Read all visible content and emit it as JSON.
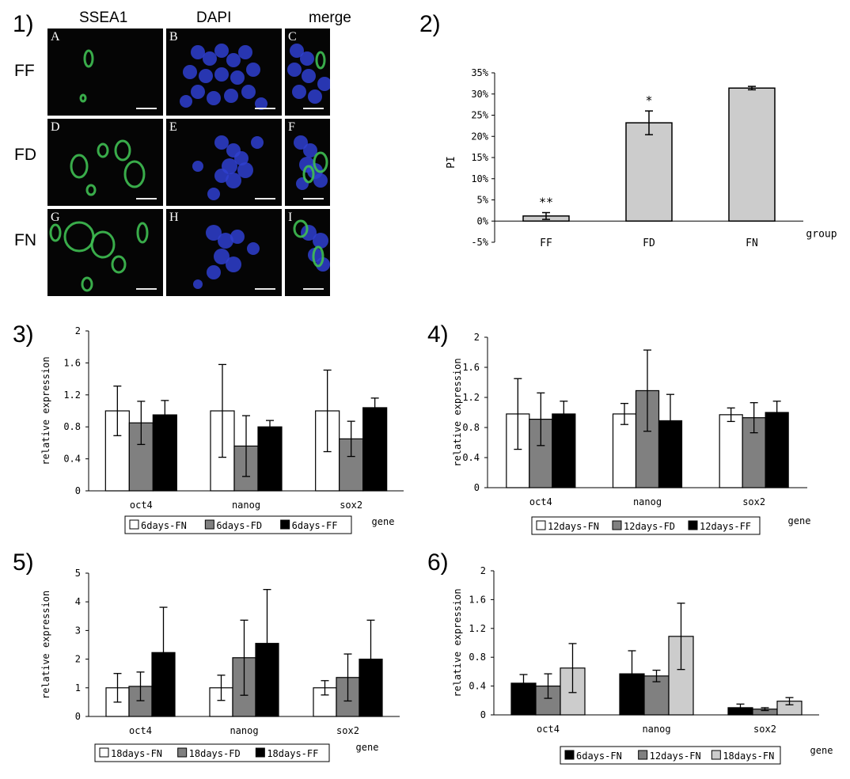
{
  "panel_labels": [
    "1)",
    "2)",
    "3)",
    "4)",
    "5)",
    "6)"
  ],
  "micrograph": {
    "columns": [
      "SSEA1",
      "DAPI",
      "merge"
    ],
    "rows": [
      "FF",
      "FD",
      "FN"
    ],
    "tiles": [
      {
        "letter": "A",
        "stain": "green"
      },
      {
        "letter": "B",
        "stain": "blue"
      },
      {
        "letter": "C",
        "stain": "merge"
      },
      {
        "letter": "D",
        "stain": "green"
      },
      {
        "letter": "E",
        "stain": "blue"
      },
      {
        "letter": "F",
        "stain": "merge"
      },
      {
        "letter": "G",
        "stain": "green"
      },
      {
        "letter": "H",
        "stain": "blue"
      },
      {
        "letter": "I",
        "stain": "merge"
      }
    ],
    "colors": {
      "green": "#3fbf52",
      "blue": "#2f3fd0",
      "background": "#050505"
    }
  },
  "chart_data": [
    {
      "id": "pi",
      "type": "bar",
      "categories": [
        "FF",
        "FD",
        "FN"
      ],
      "values": [
        1.2,
        23.2,
        31.4
      ],
      "errors": [
        0.8,
        2.8,
        0.4
      ],
      "annotations": [
        "**",
        "*",
        ""
      ],
      "ylabel": "PI",
      "xlabel": "group",
      "yticks": [
        "35%",
        "30%",
        "25%",
        "20%",
        "15%",
        "10%",
        "5%",
        "0%",
        "-5%"
      ],
      "ylim": [
        -5,
        35
      ],
      "bar_color": "#cccccc",
      "legend": null
    },
    {
      "id": "d6",
      "type": "bar",
      "categories": [
        "oct4",
        "nanog",
        "sox2"
      ],
      "series": [
        {
          "name": "6days-FN",
          "values": [
            1.0,
            1.0,
            1.0
          ],
          "errors": [
            0.31,
            0.58,
            0.51
          ],
          "color": "#ffffff"
        },
        {
          "name": "6days-FD",
          "values": [
            0.85,
            0.56,
            0.65
          ],
          "errors": [
            0.27,
            0.38,
            0.22
          ],
          "color": "#808080"
        },
        {
          "name": "6days-FF",
          "values": [
            0.95,
            0.8,
            1.04
          ],
          "errors": [
            0.18,
            0.08,
            0.12
          ],
          "color": "#000000"
        }
      ],
      "ylabel": "relative expression",
      "xlabel": "gene",
      "yticks": [
        "2",
        "1.6",
        "1.2",
        "0.8",
        "0.4",
        "0"
      ],
      "ylim": [
        0,
        2
      ],
      "legend": "bottom"
    },
    {
      "id": "d12",
      "type": "bar",
      "categories": [
        "oct4",
        "nanog",
        "sox2"
      ],
      "series": [
        {
          "name": "12days-FN",
          "values": [
            0.98,
            0.98,
            0.97
          ],
          "errors": [
            0.47,
            0.14,
            0.09
          ],
          "color": "#ffffff"
        },
        {
          "name": "12days-FD",
          "values": [
            0.91,
            1.29,
            0.93
          ],
          "errors": [
            0.35,
            0.54,
            0.2
          ],
          "color": "#808080"
        },
        {
          "name": "12days-FF",
          "values": [
            0.98,
            0.89,
            1.0
          ],
          "errors": [
            0.17,
            0.35,
            0.15
          ],
          "color": "#000000"
        }
      ],
      "ylabel": "relative expression",
      "xlabel": "gene",
      "yticks": [
        "2",
        "1.6",
        "1.2",
        "0.8",
        "0.4",
        "0"
      ],
      "ylim": [
        0,
        2
      ],
      "legend": "bottom"
    },
    {
      "id": "d18",
      "type": "bar",
      "categories": [
        "oct4",
        "nanog",
        "sox2"
      ],
      "series": [
        {
          "name": "18days-FN",
          "values": [
            1.0,
            1.0,
            1.0
          ],
          "errors": [
            0.5,
            0.44,
            0.25
          ],
          "color": "#ffffff"
        },
        {
          "name": "18days-FD",
          "values": [
            1.05,
            2.05,
            1.36
          ],
          "errors": [
            0.5,
            1.31,
            0.82
          ],
          "color": "#808080"
        },
        {
          "name": "18days-FF",
          "values": [
            2.23,
            2.55,
            2.0
          ],
          "errors": [
            1.58,
            1.88,
            1.36
          ],
          "color": "#000000"
        }
      ],
      "ylabel": "relative expression",
      "xlabel": "gene",
      "yticks": [
        "5",
        "4",
        "3",
        "2",
        "1",
        "0"
      ],
      "ylim": [
        0,
        5
      ],
      "legend": "bottom"
    },
    {
      "id": "fn",
      "type": "bar",
      "categories": [
        "oct4",
        "nanog",
        "sox2"
      ],
      "series": [
        {
          "name": "6days-FN",
          "values": [
            0.44,
            0.57,
            0.1
          ],
          "errors": [
            0.12,
            0.32,
            0.05
          ],
          "color": "#000000"
        },
        {
          "name": "12days-FN",
          "values": [
            0.4,
            0.54,
            0.08
          ],
          "errors": [
            0.17,
            0.08,
            0.02
          ],
          "color": "#808080"
        },
        {
          "name": "18days-FN",
          "values": [
            0.65,
            1.09,
            0.19
          ],
          "errors": [
            0.34,
            0.46,
            0.05
          ],
          "color": "#cccccc"
        }
      ],
      "ylabel": "relative expression",
      "xlabel": "gene",
      "yticks": [
        "2",
        "1.6",
        "1.2",
        "0.8",
        "0.4",
        "0"
      ],
      "ylim": [
        0,
        2
      ],
      "legend": "bottom"
    }
  ]
}
